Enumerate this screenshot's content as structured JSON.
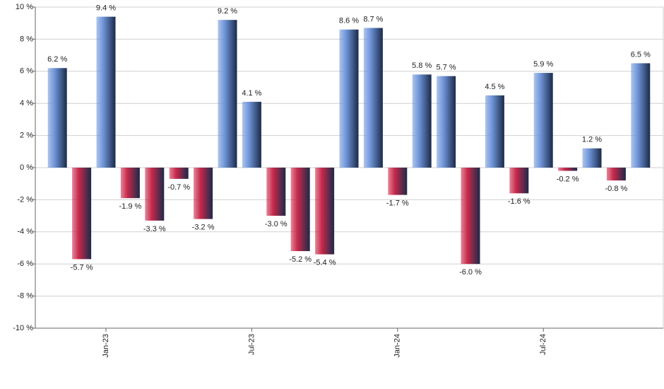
{
  "chart_data": {
    "type": "bar",
    "categories": [
      null,
      null,
      "Jan-23",
      null,
      null,
      null,
      null,
      null,
      "Jul-23",
      null,
      null,
      null,
      null,
      null,
      "Jan-24",
      null,
      null,
      null,
      null,
      null,
      "Jul-24",
      null,
      null,
      null,
      null
    ],
    "values": [
      6.2,
      -5.7,
      9.4,
      -1.9,
      -3.3,
      -0.7,
      -3.2,
      9.2,
      4.1,
      -3.0,
      -5.2,
      -5.4,
      8.6,
      8.7,
      -1.7,
      5.8,
      5.7,
      -6.0,
      4.5,
      -1.6,
      5.9,
      -0.2,
      1.2,
      -0.8,
      6.5
    ],
    "value_labels": [
      "6.2 %",
      "-5.7 %",
      "9.4 %",
      "-1.9 %",
      "-3.3 %",
      "-0.7 %",
      "-3.2 %",
      "9.2 %",
      "4.1 %",
      "-3.0 %",
      "-5.2 %",
      "-5.4 %",
      "8.6 %",
      "8.7 %",
      "-1.7 %",
      "5.8 %",
      "5.7 %",
      "-6.0 %",
      "4.5 %",
      "-1.6 %",
      "5.9 %",
      "-0.2 %",
      "1.2 %",
      "-0.8 %",
      "6.5 %"
    ],
    "positive_color": "#6f95d9",
    "negative_color": "#c8284a",
    "ylim": [
      -10,
      10
    ],
    "yticks": [
      {
        "value": -10,
        "label": "-10 %"
      },
      {
        "value": -8,
        "label": "-8 %"
      },
      {
        "value": -6,
        "label": "-6 %"
      },
      {
        "value": -4,
        "label": "-4 %"
      },
      {
        "value": -2,
        "label": "-2 %"
      },
      {
        "value": 0,
        "label": "0 %"
      },
      {
        "value": 2,
        "label": "2 %"
      },
      {
        "value": 4,
        "label": "4 %"
      },
      {
        "value": 6,
        "label": "6 %"
      },
      {
        "value": 8,
        "label": "8 %"
      },
      {
        "value": 10,
        "label": "10 %"
      }
    ],
    "grid": true
  }
}
